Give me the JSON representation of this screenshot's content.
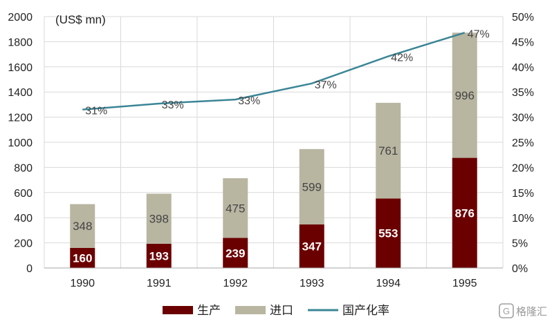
{
  "chart_data": {
    "type": "bar",
    "stacked": true,
    "categories": [
      "1990",
      "1991",
      "1992",
      "1993",
      "1994",
      "1995"
    ],
    "y_unit_label": "(US$ mn)",
    "ylim": [
      0,
      2000
    ],
    "y_ticks": [
      0,
      200,
      400,
      600,
      800,
      1000,
      1200,
      1400,
      1600,
      1800,
      2000
    ],
    "y2lim": [
      0,
      50
    ],
    "y2_ticks": [
      "0%",
      "5%",
      "10%",
      "15%",
      "20%",
      "25%",
      "30%",
      "35%",
      "40%",
      "45%",
      "50%"
    ],
    "grid": true,
    "legend_position": "bottom",
    "series": [
      {
        "name": "生产",
        "type": "bar",
        "color": "#6b0000",
        "values": [
          160,
          193,
          239,
          347,
          553,
          876
        ],
        "labels": [
          "160",
          "193",
          "239",
          "347",
          "553",
          "876"
        ]
      },
      {
        "name": "进口",
        "type": "bar",
        "color": "#b8b5a1",
        "values": [
          348,
          398,
          475,
          599,
          761,
          996
        ],
        "labels": [
          "348",
          "398",
          "475",
          "599",
          "761",
          "996"
        ]
      },
      {
        "name": "国产化率",
        "type": "line",
        "axis": "right",
        "color": "#3a8596",
        "values": [
          31.5,
          32.7,
          33.5,
          36.7,
          42.1,
          46.8
        ],
        "labels": [
          "31%",
          "33%",
          "33%",
          "37%",
          "42%",
          "47%"
        ]
      }
    ]
  },
  "watermark": {
    "text": "格隆汇",
    "icon": "logo-g-icon"
  }
}
